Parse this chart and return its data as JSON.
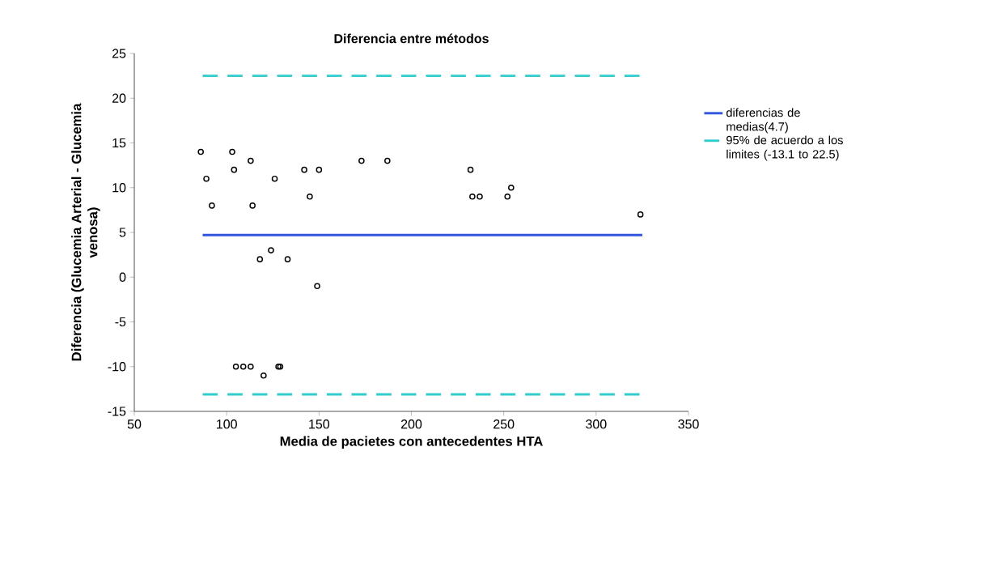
{
  "chart_data": {
    "type": "scatter",
    "title": "Diferencia entre métodos",
    "xlabel": "Media de pacietes con antecedentes HTA",
    "ylabel": "Diferencia  (Glucemia Arterial - Glucemia venosa)",
    "xlim": [
      50,
      350
    ],
    "xticks": [
      50,
      100,
      150,
      200,
      250,
      300,
      350
    ],
    "ylim": [
      -15,
      25
    ],
    "yticks": [
      -15,
      -10,
      -5,
      0,
      5,
      10,
      15,
      20,
      25
    ],
    "grid": false,
    "legend": "right",
    "marker": "circle",
    "series": [
      {
        "color": "#000000",
        "x": [
          86,
          89,
          92,
          103,
          104,
          113,
          114,
          126,
          142,
          145,
          150,
          173,
          187,
          232,
          233,
          237,
          252,
          254,
          324,
          118,
          124,
          133,
          149,
          105,
          109,
          113,
          128,
          129,
          120
        ],
        "values": [
          14,
          11,
          8,
          14,
          12,
          13,
          8,
          11,
          12,
          9,
          12,
          13,
          13,
          12,
          9,
          9,
          9,
          10,
          7,
          2,
          3,
          2,
          -1,
          -10,
          -10,
          -10,
          -10,
          -10,
          -11
        ]
      },
      {
        "type": "line",
        "name": "diferencias de medias(4.7)",
        "color": "#3355dd",
        "line_style": "solid",
        "marker": "none",
        "x": [
          87,
          325
        ],
        "values": [
          4.7,
          4.7
        ]
      },
      {
        "type": "line",
        "name": "95% de acuerdo a los limites (-13.1 to 22.5)",
        "color": "#33cccc",
        "line_style": "dashed",
        "marker": "none",
        "x": [
          87,
          325
        ],
        "values": [
          22.5,
          22.5
        ]
      },
      {
        "type": "line",
        "color": "#33cccc",
        "line_style": "dashed",
        "marker": "none",
        "x": [
          87,
          325
        ],
        "values": [
          -13.1,
          -13.1
        ]
      }
    ]
  }
}
